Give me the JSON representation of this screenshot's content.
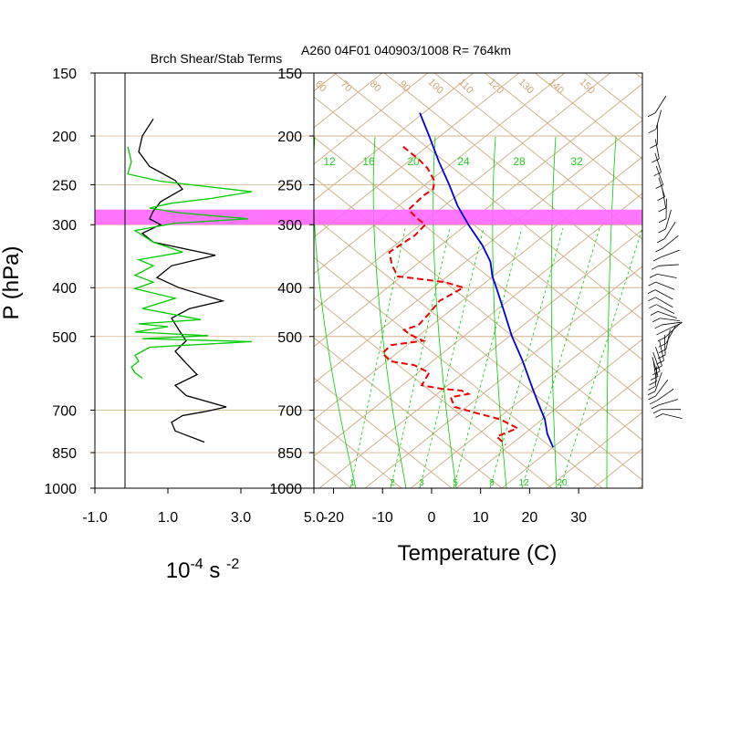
{
  "chart_data": [
    {
      "type": "line",
      "title": "Brch Shear/Stab Terms",
      "ylabel": "P (hPa)",
      "xlabel_base": "10",
      "xlabel_exp1": "-4",
      "xlabel_mid": " s ",
      "xlabel_exp2": "-2",
      "xlim": [
        -1.0,
        5.0
      ],
      "xticks": [
        -1.0,
        1.0,
        3.0,
        5.0
      ],
      "xtick_labels": [
        "-1.0",
        "1.0",
        "3.0",
        "5.0"
      ],
      "ylim": [
        150,
        1000
      ],
      "y_scale": "log",
      "pressure_levels": [
        150,
        200,
        250,
        300,
        400,
        500,
        700,
        850,
        1000
      ],
      "pressure_labels": [
        "150",
        "200",
        "250",
        "300",
        "400",
        "500",
        "700",
        "850",
        "1000"
      ],
      "highlight_band_hpa": [
        280,
        300
      ],
      "highlight_color": "#ff66ff",
      "series": [
        {
          "color": "#000000",
          "points": [
            [
              0.6,
              185
            ],
            [
              0.3,
              200
            ],
            [
              0.2,
              215
            ],
            [
              0.5,
              230
            ],
            [
              1.2,
              245
            ],
            [
              1.4,
              255
            ],
            [
              0.8,
              270
            ],
            [
              0.6,
              282
            ],
            [
              0.5,
              292
            ],
            [
              0.8,
              300
            ],
            [
              0.3,
              312
            ],
            [
              0.6,
              325
            ],
            [
              2.3,
              345
            ],
            [
              1.1,
              362
            ],
            [
              0.7,
              382
            ],
            [
              1.3,
              400
            ],
            [
              2.5,
              425
            ],
            [
              1.6,
              440
            ],
            [
              1.1,
              460
            ],
            [
              1.3,
              485
            ],
            [
              1.5,
              510
            ],
            [
              1.2,
              535
            ],
            [
              1.5,
              565
            ],
            [
              1.8,
              595
            ],
            [
              1.2,
              625
            ],
            [
              1.5,
              655
            ],
            [
              2.6,
              690
            ],
            [
              2.0,
              705
            ],
            [
              1.4,
              718
            ],
            [
              1.1,
              740
            ],
            [
              1.2,
              770
            ],
            [
              2.0,
              810
            ]
          ]
        },
        {
          "color": "#00cc00",
          "points": [
            [
              -0.1,
              210
            ],
            [
              0.0,
              225
            ],
            [
              -0.1,
              238
            ],
            [
              0.8,
              246
            ],
            [
              3.3,
              258
            ],
            [
              2.2,
              266
            ],
            [
              1.1,
              272
            ],
            [
              0.5,
              278
            ],
            [
              1.3,
              284
            ],
            [
              3.2,
              292
            ],
            [
              1.2,
              298
            ],
            [
              0.1,
              308
            ],
            [
              0.6,
              325
            ],
            [
              1.4,
              340
            ],
            [
              0.2,
              352
            ],
            [
              0.6,
              362
            ],
            [
              0.1,
              378
            ],
            [
              0.6,
              390
            ],
            [
              0.1,
              402
            ],
            [
              1.2,
              420
            ],
            [
              0.3,
              440
            ],
            [
              1.9,
              463
            ],
            [
              0.2,
              472
            ],
            [
              1.0,
              478
            ],
            [
              0.1,
              490
            ],
            [
              2.1,
              498
            ],
            [
              0.3,
              505
            ],
            [
              3.3,
              512
            ],
            [
              0.5,
              525
            ],
            [
              0.1,
              545
            ],
            [
              0.2,
              560
            ],
            [
              0.0,
              575
            ],
            [
              0.1,
              590
            ],
            [
              0.3,
              605
            ]
          ]
        }
      ]
    },
    {
      "type": "line",
      "title": "A260 04F01 040903/1008 R= 764km",
      "xlabel": "Temperature (C)",
      "xlim": [
        -24,
        43
      ],
      "xticks": [
        -20,
        -10,
        0,
        10,
        20,
        30
      ],
      "xtick_labels": [
        "-20",
        "-10",
        "0",
        "10",
        "20",
        "30"
      ],
      "ylim": [
        150,
        1000
      ],
      "y_scale": "log",
      "pressure_labels": [
        "150",
        "200",
        "250",
        "300",
        "400",
        "500",
        "700",
        "850",
        "1000"
      ],
      "mixing_ratio_labels": [
        "1",
        "2",
        "3",
        "5",
        "8",
        "12",
        "20"
      ],
      "theta_e_labels": [
        "12",
        "16",
        "20",
        "24",
        "28",
        "32"
      ],
      "dry_adiabat_labels": [
        "60",
        "70",
        "80",
        "90",
        "100",
        "110",
        "120",
        "130",
        "140",
        "150"
      ],
      "colors": {
        "grid": "#d2b48c",
        "moist": "#00cc00",
        "temperature": "#0000dd",
        "dewpoint": "#ee0000",
        "highlight": "#ff66ff"
      },
      "series": [
        {
          "name": "temperature",
          "color": "#0000dd",
          "style": "solid",
          "points": [
            [
              -2.4,
              180
            ],
            [
              -0.5,
              200
            ],
            [
              1.5,
              225
            ],
            [
              3.6,
              250
            ],
            [
              5.3,
              275
            ],
            [
              7.5,
              300
            ],
            [
              10.4,
              330
            ],
            [
              12.0,
              355
            ],
            [
              12.4,
              380
            ],
            [
              13.2,
              400
            ],
            [
              14.6,
              440
            ],
            [
              16.4,
              500
            ],
            [
              18.6,
              560
            ],
            [
              20.5,
              630
            ],
            [
              21.8,
              680
            ],
            [
              23.1,
              730
            ],
            [
              23.6,
              780
            ],
            [
              24.8,
              830
            ]
          ]
        },
        {
          "name": "dewpoint",
          "color": "#ee0000",
          "style": "dashed",
          "points": [
            [
              -5.8,
              210
            ],
            [
              -2.5,
              223
            ],
            [
              -0.8,
              232
            ],
            [
              0.6,
              246
            ],
            [
              0.3,
              255
            ],
            [
              -1.5,
              262
            ],
            [
              -4.7,
              280
            ],
            [
              -3.2,
              290
            ],
            [
              -1.3,
              300
            ],
            [
              -3.4,
              315
            ],
            [
              -8.6,
              340
            ],
            [
              -8.1,
              360
            ],
            [
              -6.9,
              380
            ],
            [
              -1.8,
              385
            ],
            [
              2.7,
              390
            ],
            [
              6.5,
              400
            ],
            [
              1.6,
              425
            ],
            [
              -0.5,
              450
            ],
            [
              -2.7,
              475
            ],
            [
              -5.6,
              485
            ],
            [
              -4.5,
              495
            ],
            [
              -1.7,
              510
            ],
            [
              -8.3,
              520
            ],
            [
              -10.0,
              540
            ],
            [
              -8.4,
              560
            ],
            [
              -3.5,
              570
            ],
            [
              -0.5,
              590
            ],
            [
              -2.0,
              625
            ],
            [
              2.1,
              635
            ],
            [
              6.1,
              640
            ],
            [
              7.5,
              650
            ],
            [
              3.9,
              660
            ],
            [
              4.7,
              690
            ],
            [
              9.3,
              710
            ],
            [
              14.0,
              730
            ],
            [
              17.5,
              760
            ],
            [
              13.3,
              790
            ],
            [
              15.1,
              820
            ]
          ]
        }
      ]
    }
  ]
}
